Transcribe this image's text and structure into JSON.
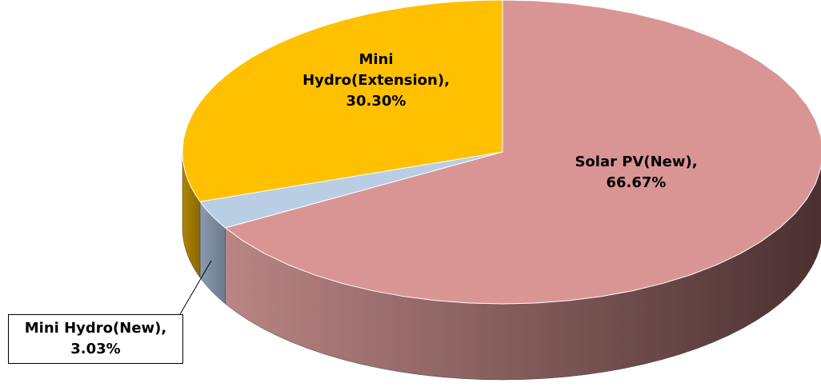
{
  "chart_data": {
    "type": "pie3d",
    "categories": [
      "Solar PV(New)",
      "Mini Hydro(New)",
      "Mini Hydro(Extension)"
    ],
    "values": [
      66.67,
      3.03,
      30.3
    ],
    "value_labels": [
      "66.67%",
      "3.03%",
      "30.30%"
    ],
    "colors": [
      "#d99594",
      "#b9cde5",
      "#ffc000"
    ]
  }
}
